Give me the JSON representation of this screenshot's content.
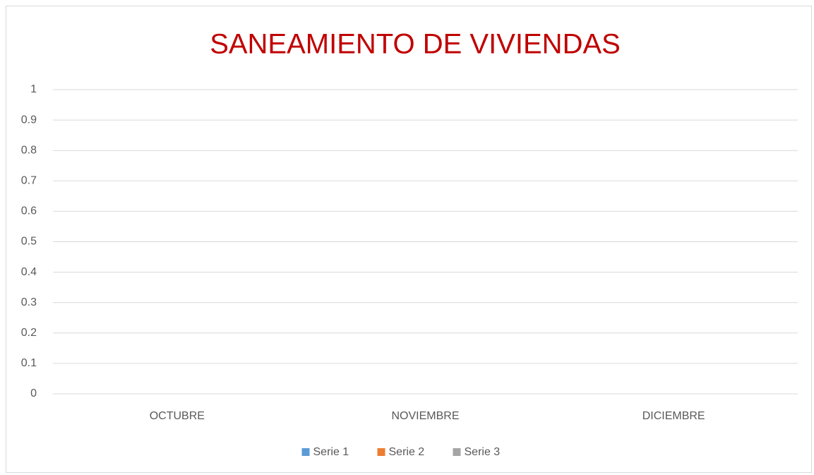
{
  "chart_data": {
    "type": "bar",
    "title": "SANEAMIENTO DE VIVIENDAS",
    "categories": [
      "OCTUBRE",
      "NOVIEMBRE",
      "DICIEMBRE"
    ],
    "series": [
      {
        "name": "Serie 1",
        "color": "#5b9bd5",
        "values": [
          0,
          0,
          0
        ]
      },
      {
        "name": "Serie 2",
        "color": "#ed7d31",
        "values": [
          0,
          0,
          0
        ]
      },
      {
        "name": "Serie 3",
        "color": "#a5a5a5",
        "values": [
          0,
          0,
          0
        ]
      }
    ],
    "ylim": [
      0,
      1
    ],
    "yticks": [
      0,
      0.1,
      0.2,
      0.3,
      0.4,
      0.5,
      0.6,
      0.7,
      0.8,
      0.9,
      1
    ],
    "grid": true,
    "legend": "bottom"
  }
}
